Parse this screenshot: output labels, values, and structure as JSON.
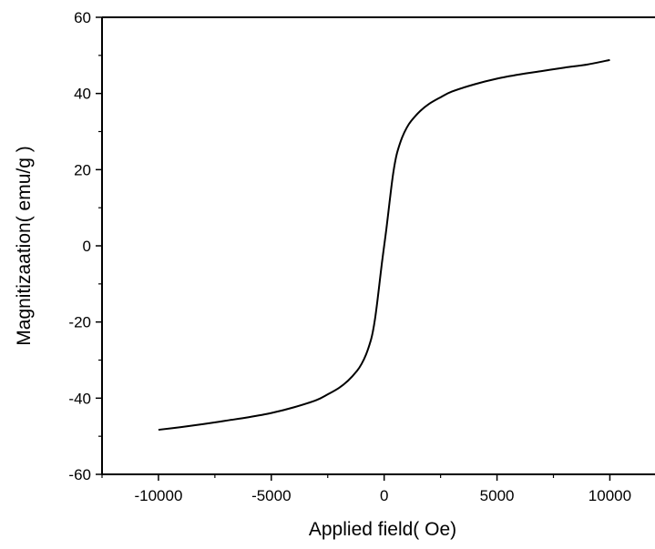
{
  "chart_data": {
    "type": "line",
    "title": "",
    "xlabel": "Applied field( Oe)",
    "ylabel": "Magnitizaation( emu/g )",
    "xlim": [
      -12500,
      12000
    ],
    "ylim": [
      -60,
      60
    ],
    "xticks": [
      -10000,
      -5000,
      0,
      5000,
      10000
    ],
    "yticks": [
      -60,
      -40,
      -20,
      0,
      20,
      40,
      60
    ],
    "xtick_labels": [
      "-10000",
      "-5000",
      "0",
      "5000",
      "10000"
    ],
    "ytick_labels": [
      "-60",
      "-40",
      "-20",
      "0",
      "20",
      "40",
      "60"
    ],
    "grid": false,
    "legend": "none",
    "line_color": "#000000",
    "series": [
      {
        "x": [
          -10000,
          -9000,
          -8000,
          -7000,
          -6000,
          -5000,
          -4000,
          -3000,
          -2500,
          -2000,
          -1600,
          -1200,
          -1000,
          -800,
          -600,
          -500,
          -400,
          -300,
          -200,
          -100,
          0,
          100,
          200,
          300,
          400,
          500,
          600,
          800,
          1000,
          1200,
          1600,
          2000,
          2500,
          3000,
          4000,
          5000,
          6000,
          7000,
          8000,
          9000,
          10000
        ],
        "y": [
          -48.3,
          -47.6,
          -46.8,
          -45.9,
          -45.0,
          -43.9,
          -42.4,
          -40.5,
          -39.0,
          -37.3,
          -35.4,
          -32.8,
          -31.0,
          -28.5,
          -25.0,
          -22.5,
          -19.0,
          -14.5,
          -9.5,
          -4.5,
          0,
          4.5,
          9.5,
          14.5,
          19.0,
          22.5,
          25.0,
          28.5,
          31.0,
          32.8,
          35.4,
          37.3,
          39.0,
          40.5,
          42.4,
          43.9,
          45.0,
          45.9,
          46.8,
          47.6,
          48.8
        ]
      }
    ]
  }
}
